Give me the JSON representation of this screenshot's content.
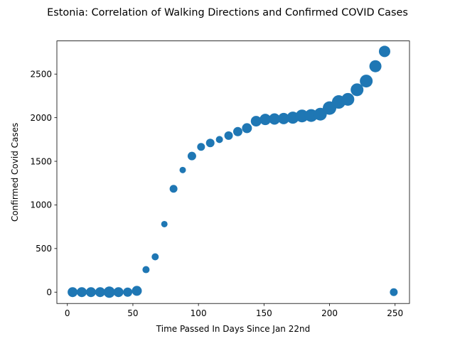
{
  "chart_data": {
    "type": "scatter",
    "title": "Estonia: Correlation of Walking Directions and Confirmed COVID Cases",
    "xlabel": "Time Passed In Days Since Jan 22nd",
    "ylabel": "Confirmed Covid Cases",
    "xlim": [
      -8,
      261
    ],
    "ylim": [
      -130,
      2880
    ],
    "xticks": [
      0,
      50,
      100,
      150,
      200,
      250
    ],
    "yticks": [
      0,
      500,
      1000,
      1500,
      2000,
      2500
    ],
    "grid": false,
    "marker_color": "#1f77b4",
    "points": [
      {
        "x": 4,
        "y": 0,
        "s": 7
      },
      {
        "x": 11,
        "y": 0,
        "s": 7
      },
      {
        "x": 18,
        "y": 0,
        "s": 7
      },
      {
        "x": 25,
        "y": 0,
        "s": 7
      },
      {
        "x": 32,
        "y": 0,
        "s": 8
      },
      {
        "x": 39,
        "y": 0,
        "s": 7
      },
      {
        "x": 46,
        "y": 0,
        "s": 6.5
      },
      {
        "x": 53,
        "y": 15,
        "s": 7
      },
      {
        "x": 60,
        "y": 258,
        "s": 5
      },
      {
        "x": 67,
        "y": 405,
        "s": 5
      },
      {
        "x": 74,
        "y": 780,
        "s": 4.5
      },
      {
        "x": 81,
        "y": 1185,
        "s": 5.5
      },
      {
        "x": 88,
        "y": 1400,
        "s": 4.5
      },
      {
        "x": 95,
        "y": 1560,
        "s": 6
      },
      {
        "x": 102,
        "y": 1665,
        "s": 5.5
      },
      {
        "x": 109,
        "y": 1710,
        "s": 6
      },
      {
        "x": 116,
        "y": 1750,
        "s": 5
      },
      {
        "x": 123,
        "y": 1795,
        "s": 6
      },
      {
        "x": 130,
        "y": 1840,
        "s": 6.5
      },
      {
        "x": 137,
        "y": 1880,
        "s": 7
      },
      {
        "x": 144,
        "y": 1960,
        "s": 7.5
      },
      {
        "x": 151,
        "y": 1980,
        "s": 8
      },
      {
        "x": 158,
        "y": 1985,
        "s": 8
      },
      {
        "x": 165,
        "y": 1990,
        "s": 8
      },
      {
        "x": 172,
        "y": 2000,
        "s": 8.5
      },
      {
        "x": 179,
        "y": 2020,
        "s": 9
      },
      {
        "x": 186,
        "y": 2025,
        "s": 9
      },
      {
        "x": 193,
        "y": 2040,
        "s": 9
      },
      {
        "x": 200,
        "y": 2110,
        "s": 9.5
      },
      {
        "x": 207,
        "y": 2180,
        "s": 9.5
      },
      {
        "x": 214,
        "y": 2210,
        "s": 9
      },
      {
        "x": 221,
        "y": 2320,
        "s": 9
      },
      {
        "x": 228,
        "y": 2420,
        "s": 9
      },
      {
        "x": 235,
        "y": 2590,
        "s": 8.5
      },
      {
        "x": 242,
        "y": 2760,
        "s": 8
      },
      {
        "x": 249,
        "y": 0,
        "s": 5.5
      }
    ]
  }
}
